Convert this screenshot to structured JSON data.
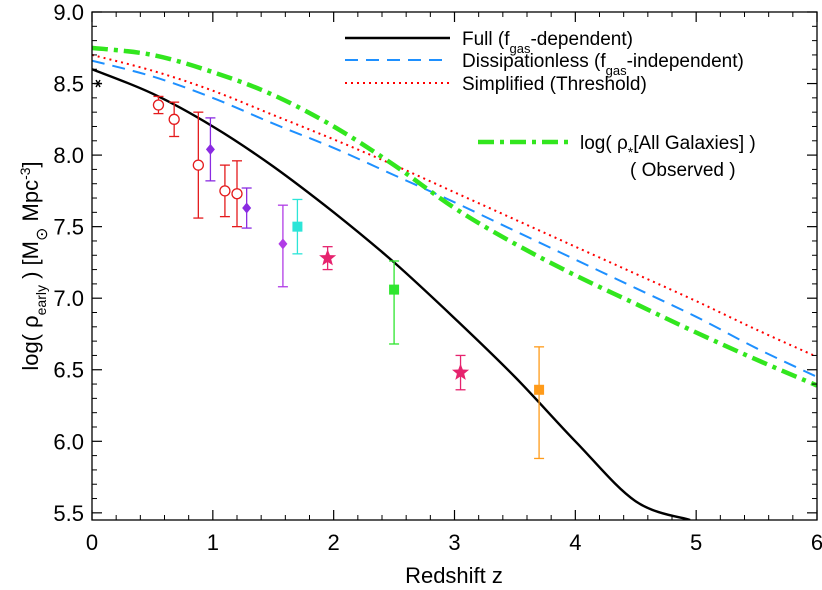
{
  "chart_data": {
    "type": "line",
    "title": "",
    "xlabel": "Redshift  z",
    "ylabel": {
      "pre": "log( ρ",
      "sub": "early",
      "mid": " )   [M",
      "sym": "⊙",
      "unit": " Mpc",
      "sup": "-3",
      "post": "]"
    },
    "xlim": [
      0,
      6
    ],
    "ylim": [
      5.45,
      9.0
    ],
    "x_ticks": [
      "0",
      "1",
      "2",
      "3",
      "4",
      "5",
      "6"
    ],
    "y_ticks": [
      "5.5",
      "6.0",
      "6.5",
      "7.0",
      "7.5",
      "8.0",
      "8.5",
      "9.0"
    ],
    "grid": false,
    "legend_position": "top-right",
    "series": [
      {
        "key": "full",
        "label": {
          "pre": "Full (f",
          "sub": "gas",
          "post": "-dependent)"
        },
        "color": "#000000",
        "style": "solid",
        "x": [
          0,
          0.5,
          1.0,
          1.5,
          2.0,
          2.5,
          3.0,
          3.5,
          4.0,
          4.5,
          4.95
        ],
        "y": [
          8.6,
          8.43,
          8.2,
          7.92,
          7.6,
          7.25,
          6.86,
          6.45,
          6.0,
          5.58,
          5.45
        ]
      },
      {
        "key": "dissipationless",
        "label": {
          "pre": "Dissipationless (f",
          "sub": "gas",
          "post": "-independent)"
        },
        "color": "#1e90ff",
        "style": "dashed",
        "x": [
          0,
          0.5,
          1.0,
          1.5,
          2.0,
          2.5,
          3.0,
          3.5,
          4.0,
          4.5,
          5.0,
          5.5,
          6.0
        ],
        "y": [
          8.66,
          8.55,
          8.4,
          8.22,
          8.05,
          7.86,
          7.67,
          7.47,
          7.27,
          7.07,
          6.87,
          6.65,
          6.45
        ]
      },
      {
        "key": "simplified",
        "label": {
          "pre": "Simplified (Threshold)",
          "sub": "",
          "post": ""
        },
        "color": "#ff0000",
        "style": "dotted",
        "x": [
          0,
          0.5,
          1.0,
          1.5,
          2.0,
          2.5,
          3.0,
          3.5,
          4.0,
          4.5,
          5.0,
          5.5,
          6.0
        ],
        "y": [
          8.7,
          8.59,
          8.45,
          8.28,
          8.11,
          7.93,
          7.74,
          7.55,
          7.36,
          7.17,
          6.98,
          6.78,
          6.59
        ]
      },
      {
        "key": "observed",
        "label": {
          "pre": "log( ρ",
          "sub": "*",
          "post": "[All Galaxies] )",
          "line2": "( Observed )"
        },
        "color": "#32e61e",
        "style": "dashdot",
        "x": [
          0,
          0.5,
          1.0,
          1.5,
          2.0,
          2.5,
          3.0,
          3.5,
          4.0,
          4.5,
          5.0,
          5.5,
          6.0
        ],
        "y": [
          8.75,
          8.7,
          8.58,
          8.42,
          8.2,
          7.93,
          7.63,
          7.38,
          7.16,
          6.96,
          6.76,
          6.57,
          6.39
        ]
      }
    ],
    "points": [
      {
        "x": 0.55,
        "y": 8.35,
        "err_lo": 0.06,
        "err_hi": 0.06,
        "marker": "open-circle",
        "color": "#e41a1c"
      },
      {
        "x": 0.68,
        "y": 8.25,
        "err_lo": 0.12,
        "err_hi": 0.12,
        "marker": "open-circle",
        "color": "#e41a1c"
      },
      {
        "x": 0.88,
        "y": 7.93,
        "err_lo": 0.37,
        "err_hi": 0.37,
        "marker": "open-circle",
        "color": "#e41a1c"
      },
      {
        "x": 1.1,
        "y": 7.75,
        "err_lo": 0.18,
        "err_hi": 0.18,
        "marker": "open-circle",
        "color": "#e41a1c"
      },
      {
        "x": 1.2,
        "y": 7.73,
        "err_lo": 0.23,
        "err_hi": 0.23,
        "marker": "open-circle",
        "color": "#e41a1c"
      },
      {
        "x": 0.98,
        "y": 8.04,
        "err_lo": 0.22,
        "err_hi": 0.22,
        "marker": "filled-diamond",
        "color": "#8a2be2"
      },
      {
        "x": 1.28,
        "y": 7.63,
        "err_lo": 0.14,
        "err_hi": 0.14,
        "marker": "filled-diamond",
        "color": "#8a2be2"
      },
      {
        "x": 1.58,
        "y": 7.38,
        "err_lo": 0.3,
        "err_hi": 0.27,
        "marker": "filled-diamond",
        "color": "#b13de6"
      },
      {
        "x": 1.7,
        "y": 7.5,
        "err_lo": 0.19,
        "err_hi": 0.19,
        "marker": "filled-square",
        "color": "#2ce5d8"
      },
      {
        "x": 1.95,
        "y": 7.28,
        "err_lo": 0.08,
        "err_hi": 0.08,
        "marker": "filled-star",
        "color": "#e6236e"
      },
      {
        "x": 2.5,
        "y": 7.06,
        "err_lo": 0.38,
        "err_hi": 0.2,
        "marker": "filled-square",
        "color": "#2ee62e"
      },
      {
        "x": 3.05,
        "y": 6.48,
        "err_lo": 0.12,
        "err_hi": 0.12,
        "marker": "filled-star",
        "color": "#e6236e"
      },
      {
        "x": 3.7,
        "y": 6.36,
        "err_lo": 0.48,
        "err_hi": 0.3,
        "marker": "filled-square",
        "color": "#ff9b1a"
      },
      {
        "x": 0.05,
        "y": 8.5,
        "err_lo": 0,
        "err_hi": 0,
        "marker": "asterisk",
        "color": "#000000"
      }
    ]
  }
}
